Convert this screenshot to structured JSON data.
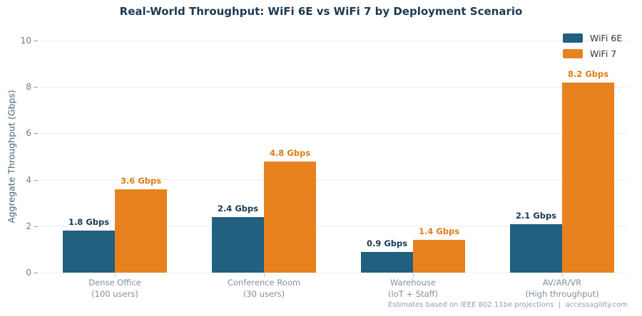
{
  "title": "Real-World Throughput: WiFi 6E vs WiFi 7 by Deployment Scenario",
  "footer": "Estimates based on IEEE 802.11be projections  |  accessagility.com",
  "colors": {
    "title": "#1b3a54",
    "wifi6e": "#21607f",
    "wifi7": "#e8821e",
    "gridline": "#ebedf0",
    "axis_text": "#6e7d8a",
    "category_text": "#84909b",
    "footer_text": "#939ea6"
  },
  "chart_data": {
    "type": "bar",
    "title": "Real-World Throughput: WiFi 6E vs WiFi 7 by Deployment Scenario",
    "xlabel": "",
    "ylabel": "Aggregate Throughput (Gbps)",
    "ylim": [
      0,
      10
    ],
    "yticks": [
      0,
      2,
      4,
      6,
      8,
      10
    ],
    "grid": true,
    "legend_position": "upper right",
    "categories": [
      {
        "line1": "Dense Office",
        "line2": "(100 users)"
      },
      {
        "line1": "Conference Room",
        "line2": "(30 users)"
      },
      {
        "line1": "Warehouse",
        "line2": "(IoT + Staff)"
      },
      {
        "line1": "AV/AR/VR",
        "line2": "(High throughput)"
      }
    ],
    "series": [
      {
        "name": "WiFi 6E",
        "color": "#21607f",
        "label_color": "#1b3a54",
        "values": [
          1.8,
          2.4,
          0.9,
          2.1
        ],
        "labels": [
          "1.8 Gbps",
          "2.4 Gbps",
          "0.9 Gbps",
          "2.1 Gbps"
        ]
      },
      {
        "name": "WiFi 7",
        "color": "#e8821e",
        "label_color": "#e07b17",
        "values": [
          3.6,
          4.8,
          1.4,
          8.2
        ],
        "labels": [
          "3.6 Gbps",
          "4.8 Gbps",
          "1.4 Gbps",
          "8.2 Gbps"
        ]
      }
    ]
  }
}
